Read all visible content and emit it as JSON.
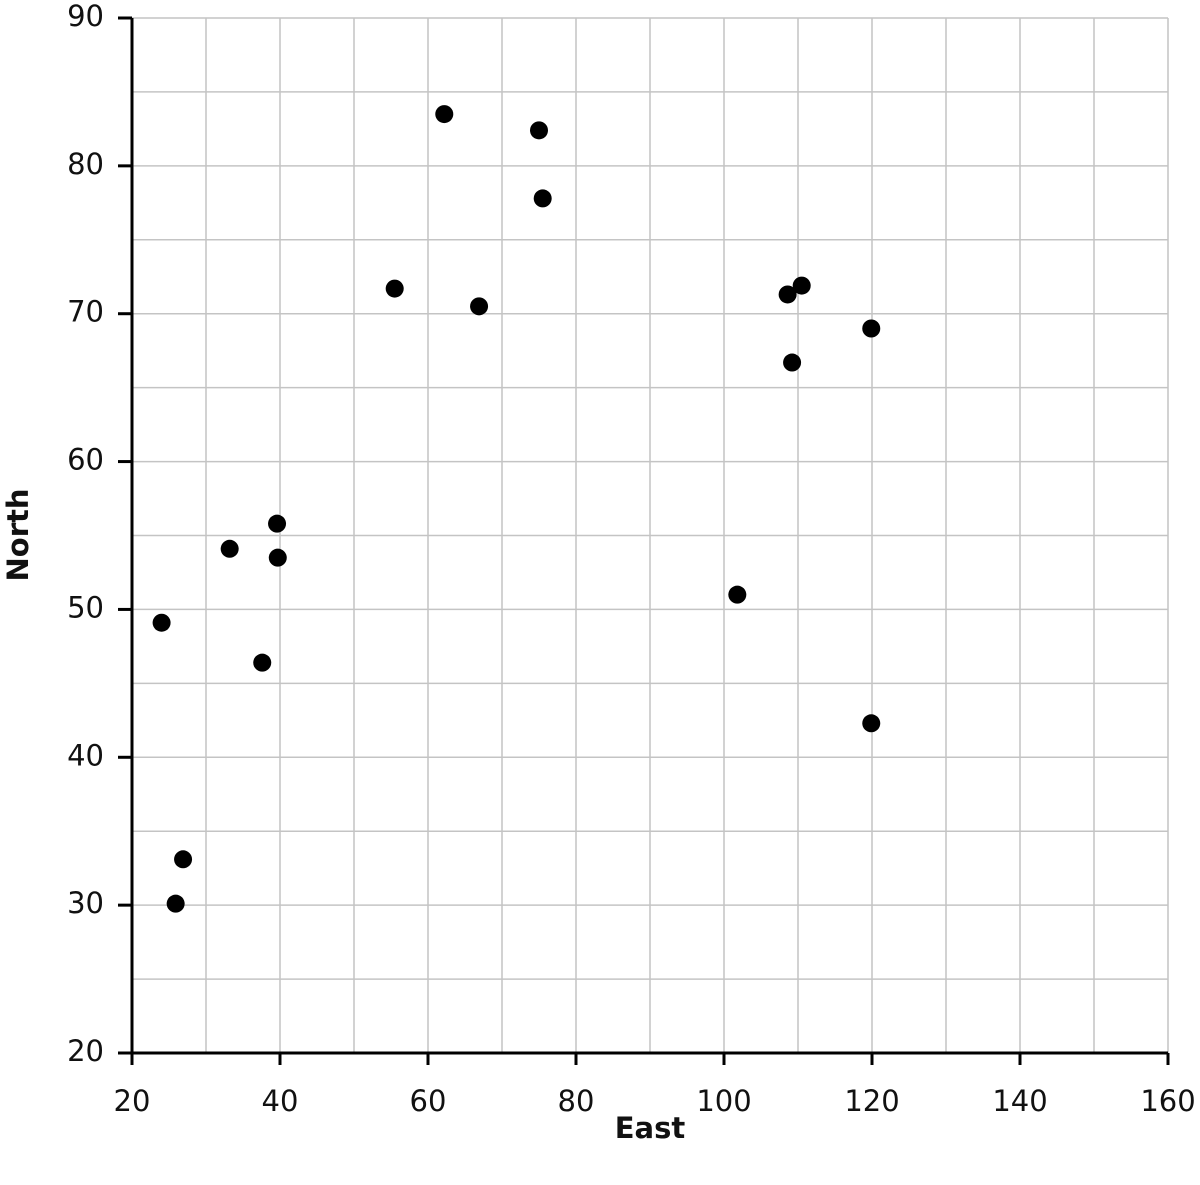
{
  "chart_data": {
    "type": "scatter",
    "x_label": "East",
    "y_label": "North",
    "x": [
      24,
      25.9,
      26.9,
      33.2,
      37.6,
      39.6,
      39.7,
      55.5,
      62.2,
      66.9,
      75,
      75.5,
      101.8,
      108.6,
      109.2,
      110.5,
      119.9,
      119.9
    ],
    "values": [
      49.1,
      30.1,
      33.1,
      54.1,
      46.4,
      55.8,
      53.5,
      71.7,
      83.5,
      70.5,
      82.4,
      77.8,
      51,
      71.3,
      66.7,
      71.9,
      69,
      42.3
    ],
    "color": "#000000",
    "xlim": [
      20,
      160
    ],
    "ylim": [
      20,
      90
    ],
    "xticks": [
      20,
      40,
      60,
      80,
      100,
      120,
      140,
      160
    ],
    "yticks": [
      20,
      30,
      40,
      50,
      60,
      70,
      80,
      90
    ],
    "xminorticks": [
      30,
      50,
      70,
      90,
      110,
      130,
      150
    ],
    "yminorticks": [
      25,
      35,
      45,
      55,
      65,
      75,
      85
    ],
    "grid": true
  }
}
